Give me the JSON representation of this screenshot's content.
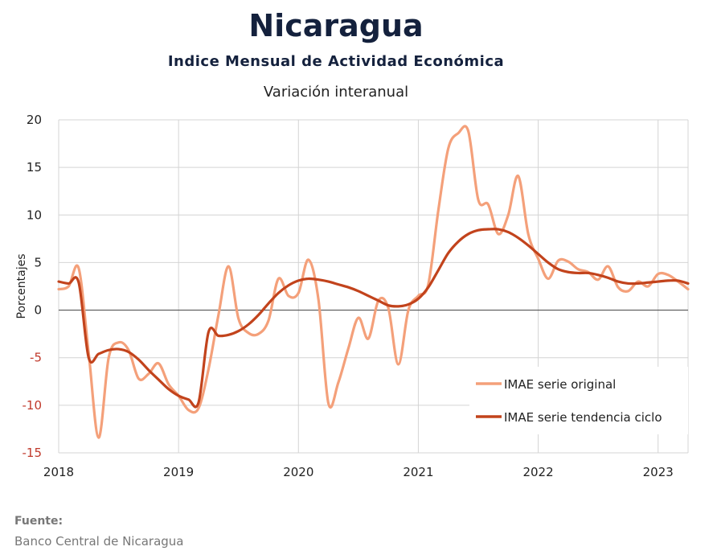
{
  "header": {
    "title": "Nicaragua",
    "subtitle": "Indice Mensual de  Actividad Económica",
    "subsubtitle": "Variación interanual"
  },
  "source": {
    "label": "Fuente:",
    "text": "Banco Central de Nicaragua"
  },
  "chart_data": {
    "type": "line",
    "ylabel": "Porcentajes",
    "xlim": [
      2018,
      2023.25
    ],
    "ylim": [
      -15,
      20
    ],
    "y_ticks": [
      20,
      15,
      10,
      5,
      0,
      -5,
      -10,
      -15
    ],
    "x_ticks": [
      "2018",
      "2019",
      "2020",
      "2021",
      "2022",
      "2023"
    ],
    "grid": true,
    "legend_position": "bottom-right",
    "colors": {
      "original": "#f4a07a",
      "trend": "#c2431c",
      "negative_tick": "#c0392b"
    },
    "series": [
      {
        "name": "IMAE serie original",
        "points": [
          [
            2018.0,
            2.2
          ],
          [
            2018.083,
            2.5
          ],
          [
            2018.167,
            4.4
          ],
          [
            2018.25,
            -4.5
          ],
          [
            2018.333,
            -13.4
          ],
          [
            2018.417,
            -5.0
          ],
          [
            2018.5,
            -3.4
          ],
          [
            2018.583,
            -4.2
          ],
          [
            2018.667,
            -7.2
          ],
          [
            2018.75,
            -6.7
          ],
          [
            2018.833,
            -5.6
          ],
          [
            2018.917,
            -7.8
          ],
          [
            2019.0,
            -9.0
          ],
          [
            2019.083,
            -10.5
          ],
          [
            2019.167,
            -10.3
          ],
          [
            2019.25,
            -6.2
          ],
          [
            2019.333,
            -0.5
          ],
          [
            2019.417,
            4.6
          ],
          [
            2019.5,
            -0.9
          ],
          [
            2019.583,
            -2.4
          ],
          [
            2019.667,
            -2.5
          ],
          [
            2019.75,
            -1.1
          ],
          [
            2019.833,
            3.3
          ],
          [
            2019.917,
            1.5
          ],
          [
            2020.0,
            1.8
          ],
          [
            2020.083,
            5.3
          ],
          [
            2020.167,
            1.1
          ],
          [
            2020.25,
            -9.8
          ],
          [
            2020.333,
            -7.6
          ],
          [
            2020.417,
            -4.0
          ],
          [
            2020.5,
            -0.8
          ],
          [
            2020.583,
            -3.0
          ],
          [
            2020.667,
            1.0
          ],
          [
            2020.75,
            0.2
          ],
          [
            2020.833,
            -5.7
          ],
          [
            2020.917,
            0.0
          ],
          [
            2021.0,
            1.5
          ],
          [
            2021.083,
            2.7
          ],
          [
            2021.167,
            10.5
          ],
          [
            2021.25,
            17.0
          ],
          [
            2021.333,
            18.6
          ],
          [
            2021.417,
            18.8
          ],
          [
            2021.5,
            11.6
          ],
          [
            2021.583,
            11.1
          ],
          [
            2021.667,
            8.0
          ],
          [
            2021.75,
            10.0
          ],
          [
            2021.833,
            14.1
          ],
          [
            2021.917,
            8.0
          ],
          [
            2022.0,
            5.4
          ],
          [
            2022.083,
            3.3
          ],
          [
            2022.167,
            5.2
          ],
          [
            2022.25,
            5.1
          ],
          [
            2022.333,
            4.3
          ],
          [
            2022.417,
            4.0
          ],
          [
            2022.5,
            3.2
          ],
          [
            2022.583,
            4.6
          ],
          [
            2022.667,
            2.4
          ],
          [
            2022.75,
            2.0
          ],
          [
            2022.833,
            3.0
          ],
          [
            2022.917,
            2.5
          ],
          [
            2023.0,
            3.8
          ],
          [
            2023.083,
            3.7
          ],
          [
            2023.167,
            3.0
          ],
          [
            2023.25,
            2.2
          ]
        ]
      },
      {
        "name": "IMAE serie  tendencia ciclo",
        "points": [
          [
            2018.0,
            3.0
          ],
          [
            2018.083,
            2.8
          ],
          [
            2018.167,
            2.9
          ],
          [
            2018.25,
            -5.0
          ],
          [
            2018.333,
            -4.6
          ],
          [
            2018.417,
            -4.2
          ],
          [
            2018.5,
            -4.1
          ],
          [
            2018.583,
            -4.4
          ],
          [
            2018.667,
            -5.2
          ],
          [
            2018.75,
            -6.3
          ],
          [
            2018.833,
            -7.3
          ],
          [
            2018.917,
            -8.3
          ],
          [
            2019.0,
            -9.0
          ],
          [
            2019.083,
            -9.4
          ],
          [
            2019.167,
            -9.7
          ],
          [
            2019.25,
            -2.3
          ],
          [
            2019.333,
            -2.7
          ],
          [
            2019.417,
            -2.6
          ],
          [
            2019.5,
            -2.2
          ],
          [
            2019.583,
            -1.5
          ],
          [
            2019.667,
            -0.5
          ],
          [
            2019.75,
            0.7
          ],
          [
            2019.833,
            1.8
          ],
          [
            2019.917,
            2.6
          ],
          [
            2020.0,
            3.1
          ],
          [
            2020.083,
            3.3
          ],
          [
            2020.167,
            3.2
          ],
          [
            2020.25,
            3.0
          ],
          [
            2020.333,
            2.7
          ],
          [
            2020.417,
            2.4
          ],
          [
            2020.5,
            2.0
          ],
          [
            2020.583,
            1.5
          ],
          [
            2020.667,
            1.0
          ],
          [
            2020.75,
            0.5
          ],
          [
            2020.833,
            0.4
          ],
          [
            2020.917,
            0.6
          ],
          [
            2021.0,
            1.2
          ],
          [
            2021.083,
            2.4
          ],
          [
            2021.167,
            4.2
          ],
          [
            2021.25,
            6.0
          ],
          [
            2021.333,
            7.2
          ],
          [
            2021.417,
            8.0
          ],
          [
            2021.5,
            8.4
          ],
          [
            2021.583,
            8.5
          ],
          [
            2021.667,
            8.5
          ],
          [
            2021.75,
            8.2
          ],
          [
            2021.833,
            7.6
          ],
          [
            2021.917,
            6.8
          ],
          [
            2022.0,
            5.9
          ],
          [
            2022.083,
            5.0
          ],
          [
            2022.167,
            4.3
          ],
          [
            2022.25,
            4.0
          ],
          [
            2022.333,
            3.9
          ],
          [
            2022.417,
            3.9
          ],
          [
            2022.5,
            3.7
          ],
          [
            2022.583,
            3.4
          ],
          [
            2022.667,
            3.0
          ],
          [
            2022.75,
            2.8
          ],
          [
            2022.833,
            2.8
          ],
          [
            2022.917,
            2.9
          ],
          [
            2023.0,
            3.0
          ],
          [
            2023.083,
            3.1
          ],
          [
            2023.167,
            3.1
          ],
          [
            2023.25,
            2.8
          ]
        ]
      }
    ]
  }
}
